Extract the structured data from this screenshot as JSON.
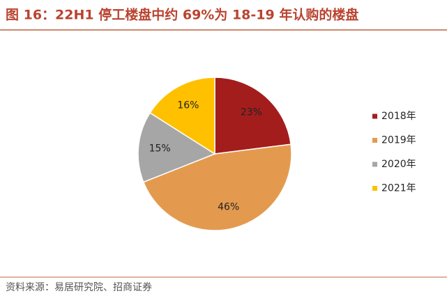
{
  "chart_data": {
    "type": "pie",
    "title": "图 16：22H1 停工楼盘中约 69%为 18-19 年认购的楼盘",
    "categories": [
      "2018年",
      "2019年",
      "2020年",
      "2021年"
    ],
    "values": [
      23,
      46,
      15,
      16
    ],
    "value_labels": [
      "23%",
      "46%",
      "15%",
      "16%"
    ],
    "colors": [
      "#a31d1d",
      "#e49a4e",
      "#a6a6a6",
      "#ffc000"
    ],
    "source": "资料来源：易居研究院、招商证券"
  }
}
